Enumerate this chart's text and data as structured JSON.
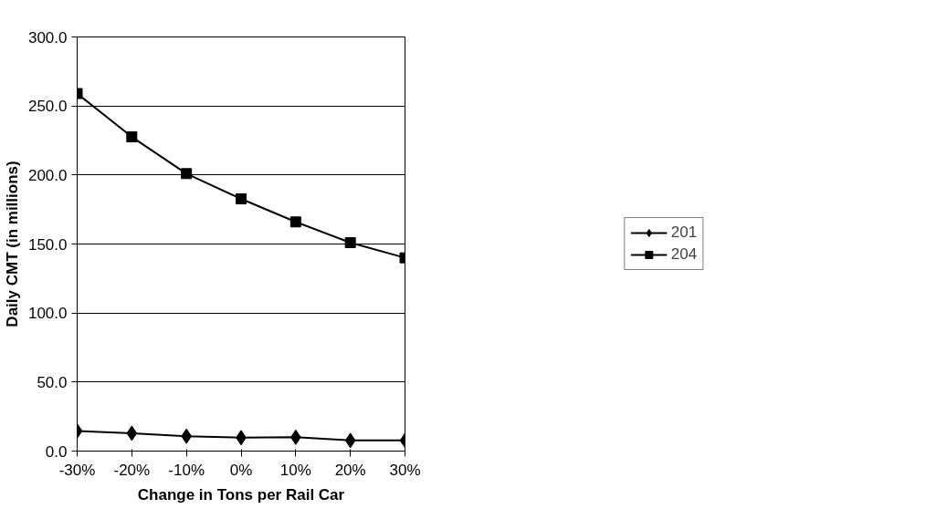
{
  "chart_data": {
    "type": "line",
    "xlabel": "Change in Tons per Rail Car",
    "ylabel": "Daily CMT (in millions)",
    "categories": [
      "-30%",
      "-20%",
      "-10%",
      "0%",
      "10%",
      "20%",
      "30%"
    ],
    "series": [
      {
        "name": "201",
        "color": "#000000",
        "marker": "diamond",
        "values": [
          14.6,
          12.9,
          10.8,
          9.7,
          10.0,
          7.7,
          7.7
        ]
      },
      {
        "name": "204",
        "color": "#000000",
        "marker": "square",
        "values": [
          259,
          227.6,
          201,
          182.7,
          166,
          151,
          140
        ]
      }
    ],
    "ylim": [
      0,
      300
    ],
    "yticks": [
      {
        "value": 0,
        "label": "0.0"
      },
      {
        "value": 50,
        "label": "50.0"
      },
      {
        "value": 100,
        "label": "100.0"
      },
      {
        "value": 150,
        "label": "150.0"
      },
      {
        "value": 200,
        "label": "200.0"
      },
      {
        "value": 250,
        "label": "250.0"
      },
      {
        "value": 300,
        "label": "300.0"
      }
    ],
    "grid": "y",
    "legend": "right",
    "line_style": "solid"
  }
}
